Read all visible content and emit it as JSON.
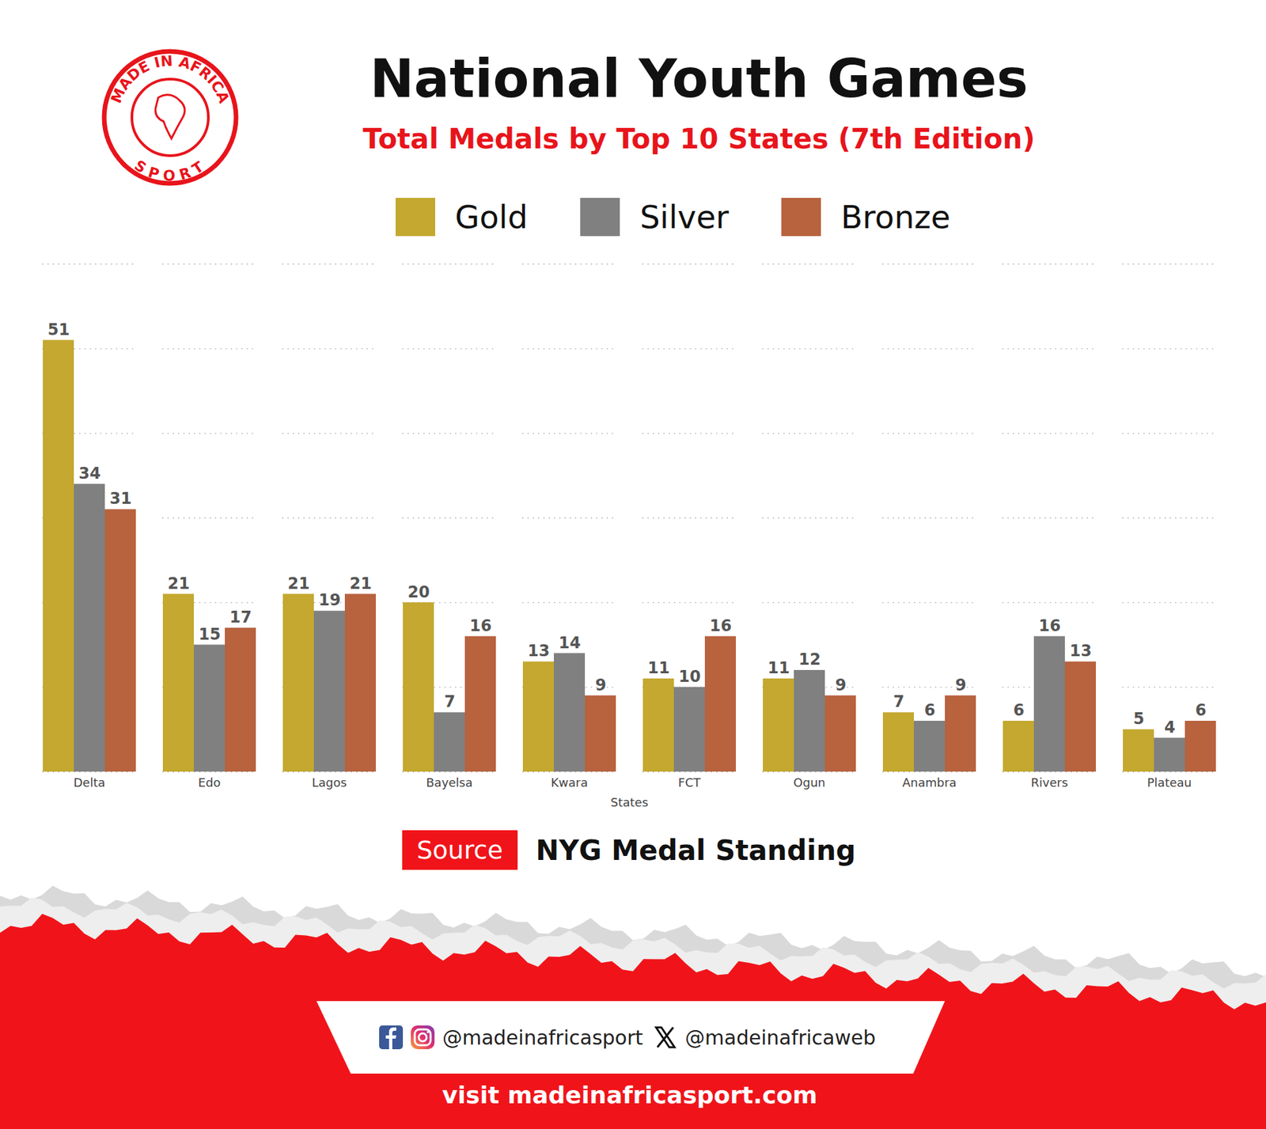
{
  "chart_data": {
    "type": "bar",
    "title": "National Youth Games",
    "subtitle": "Total Medals by Top 10 States (7th Edition)",
    "x_label": "States",
    "categories": [
      "Delta",
      "Edo",
      "Lagos",
      "Bayelsa",
      "Kwara",
      "FCT",
      "Ogun",
      "Anambra",
      "Rivers",
      "Plateau"
    ],
    "series": [
      {
        "name": "Gold",
        "color": "#c4a82f",
        "values": [
          51,
          21,
          21,
          20,
          13,
          11,
          11,
          7,
          6,
          5
        ]
      },
      {
        "name": "Silver",
        "color": "#808080",
        "values": [
          34,
          15,
          19,
          7,
          14,
          10,
          12,
          6,
          16,
          4
        ]
      },
      {
        "name": "Bronze",
        "color": "#b8623e",
        "values": [
          31,
          17,
          21,
          16,
          9,
          16,
          9,
          9,
          13,
          6
        ]
      }
    ],
    "ylim": [
      0,
      60
    ],
    "yticks": [
      0,
      10,
      20,
      30,
      40,
      50,
      60
    ],
    "grid": true,
    "data_labels": true,
    "tick_labels": "x",
    "legend": "top",
    "source_label": "Source",
    "source": "NYG Medal Standing",
    "logo": [
      "MADE IN AFRICA",
      "SPORT"
    ],
    "social": [
      "@madeinafricasport",
      "@madeinafricaweb"
    ],
    "website": "visit madeinafricasport.com"
  }
}
